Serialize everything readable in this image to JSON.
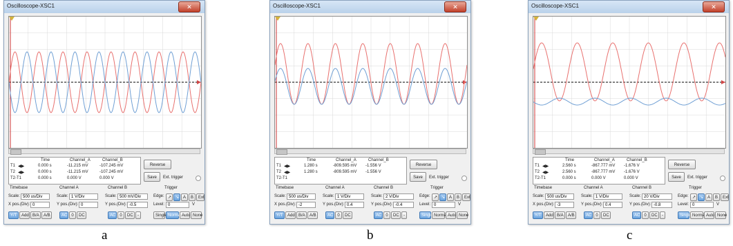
{
  "window_title": "Oscilloscope-XSC1",
  "controls": {
    "close_glyph": "✕",
    "time_header": "Time",
    "channel_a_header": "Channel_A",
    "channel_b_header": "Channel_B",
    "row_t1": "T1",
    "row_t2": "T2",
    "row_t2t1": "T2-T1",
    "reverse": "Reverse",
    "save": "Save",
    "ext_trigger": "Ext. trigger",
    "timebase": "Timebase",
    "channel_a": "Channel A",
    "channel_b": "Channel B",
    "trigger": "Trigger",
    "scale_label": "Scale:",
    "xpos_label": "X pos.(Div):",
    "ypos_label": "Y pos.(Div):",
    "edge_label": "Edge:",
    "level_label": "Level:",
    "level_value": "0",
    "level_unit": "V",
    "btn_yt": "Y/T",
    "btn_add": "Add",
    "btn_ba": "B/A",
    "btn_ab": "A/B",
    "btn_ac": "AC",
    "btn_0": "0",
    "btn_dc": "DC",
    "btn_minus": "-",
    "btn_a": "A",
    "btn_b": "B",
    "btn_ext": "Ext",
    "btn_single": "Single",
    "btn_normal": "Normal",
    "btn_auto": "Auto",
    "btn_none": "None"
  },
  "panels": [
    {
      "id": "a",
      "caption": "a",
      "measurements": {
        "t1": [
          "0.000 s",
          "-11.215 mV",
          "-107.245 mV"
        ],
        "t2": [
          "0.000 s",
          "-11.215 mV",
          "-107.245 mV"
        ],
        "diff": [
          "0.000 s",
          "0.000 V",
          "0.000 V"
        ]
      },
      "timebase_scale": "500 us/Div",
      "timebase_xpos": "0",
      "cha_scale": "1 V/Div",
      "cha_ypos": "0",
      "chb_scale": "500 mV/Div",
      "chb_ypos": "-0.5"
    },
    {
      "id": "b",
      "caption": "b",
      "measurements": {
        "t1": [
          "1.280 s",
          "-809.595 mV",
          "-1.556 V"
        ],
        "t2": [
          "1.280 s",
          "-809.595 mV",
          "-1.556 V"
        ],
        "diff": [
          "",
          "",
          ""
        ]
      },
      "timebase_scale": "500 us/Div",
      "timebase_xpos": "-2",
      "cha_scale": "1 V/Div",
      "cha_ypos": "0.4",
      "chb_scale": "2 V/Div",
      "chb_ypos": "-0.4"
    },
    {
      "id": "c",
      "caption": "c",
      "measurements": {
        "t1": [
          "2.560 s",
          "-867.777 mV",
          "-1.676 V"
        ],
        "t2": [
          "2.560 s",
          "-867.777 mV",
          "-1.676 V"
        ],
        "diff": [
          "0.000 s",
          "0.000 V",
          "0.000 V"
        ]
      },
      "timebase_scale": "500 us/Div",
      "timebase_xpos": "-3",
      "cha_scale": "1 V/Div",
      "cha_ypos": "0.4",
      "chb_scale": "20 V/Div",
      "chb_ypos": "-0.8"
    }
  ],
  "colors": {
    "channel_a": "#e8706e",
    "channel_b": "#6f9fd4",
    "background": "#ffffff",
    "grid": "#d8d8d8"
  }
}
